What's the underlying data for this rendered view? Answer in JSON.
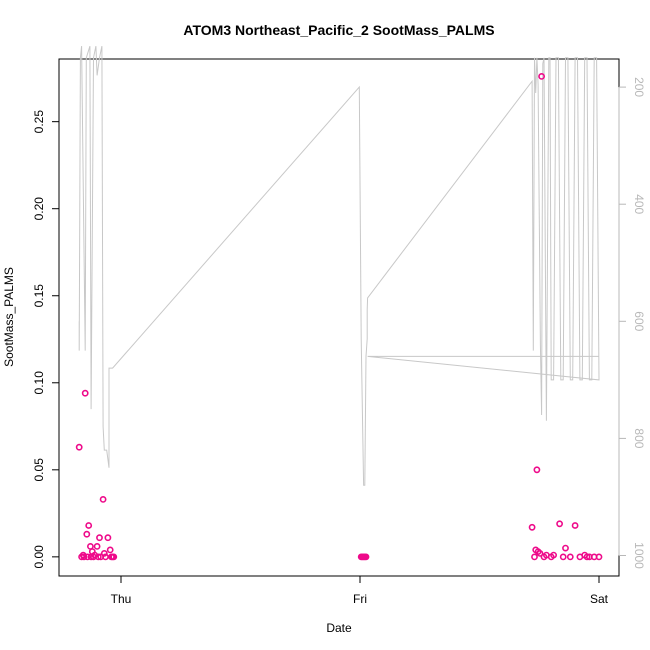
{
  "chart_data": {
    "type": "scatter",
    "title": "ATOM3 Northeast_Pacific_2 SootMass_PALMS",
    "xlabel": "Date",
    "ylabel": "SootMass_PALMS",
    "x_ticks": [
      "Thu",
      "Fri",
      "Sat"
    ],
    "y_ticks": [
      "0.00",
      "0.05",
      "0.10",
      "0.15",
      "0.20",
      "0.25"
    ],
    "y_tick_values": [
      0.0,
      0.05,
      0.1,
      0.15,
      0.2,
      0.25
    ],
    "ylim": [
      -0.011,
      0.286
    ],
    "xlim_days": [
      -0.205,
      2.025
    ],
    "y2_ticks": [
      "200",
      "400",
      "600",
      "800",
      "1000"
    ],
    "y2_tick_values": [
      200,
      400,
      600,
      800,
      1000
    ],
    "y2lim": [
      1035,
      152
    ],
    "grid": false,
    "colors": {
      "points": "#ee0a8a",
      "pressure_line": "#c8c8c8",
      "axis": "#000000",
      "y2_axis": "#b8b8b8"
    },
    "series": [
      {
        "type": "scatter",
        "x": [
          -0.175,
          -0.158,
          -0.15,
          -0.143,
          -0.135,
          -0.128,
          -0.12,
          -0.11,
          -0.1,
          -0.09,
          -0.075,
          -0.07,
          -0.055,
          -0.045,
          -0.035,
          -0.03,
          -0.165,
          -0.155,
          -0.14,
          -0.125,
          -0.115,
          -0.095,
          -0.085,
          -0.065,
          -0.04,
          1.005,
          1.01,
          1.015,
          1.02,
          1.025,
          1.72,
          1.735,
          1.74,
          1.745,
          1.753,
          1.76,
          1.78,
          1.81,
          1.835,
          1.86,
          1.9,
          1.94,
          1.96,
          2.0,
          1.73,
          1.77,
          1.8,
          1.85,
          1.88,
          1.92,
          1.95,
          1.98
        ],
        "y": [
          0.063,
          0.001,
          0.094,
          0.013,
          0.018,
          0.006,
          0.003,
          0.001,
          0.006,
          0.011,
          0.033,
          0.002,
          0.011,
          0.004,
          0.0,
          0.0,
          0.0,
          0.0,
          0.0,
          0.0,
          0.0,
          0.0,
          0.0,
          0.0,
          0.0,
          0.0,
          0.0,
          0.0,
          0.0,
          0.0,
          0.017,
          0.004,
          0.05,
          0.003,
          0.002,
          0.276,
          0.001,
          0.001,
          0.019,
          0.005,
          0.018,
          0.001,
          0.0,
          0.0,
          0.0,
          0.0,
          0.0,
          0.0,
          0.0,
          0.0,
          0.0,
          0.0
        ]
      },
      {
        "type": "line",
        "axis": "y2",
        "x": [
          -0.175,
          -0.175,
          -0.17,
          -0.165,
          -0.15,
          -0.145,
          -0.13,
          -0.125,
          -0.115,
          -0.105,
          -0.1,
          -0.09,
          -0.08,
          -0.075,
          -0.07,
          -0.06,
          -0.05,
          -0.05,
          -0.035,
          0.997,
          1.005,
          1.015,
          1.02,
          1.025,
          1.03,
          1.03,
          1.032,
          1.72,
          1.725,
          1.73,
          1.735,
          1.74,
          1.745,
          1.755,
          1.76,
          1.765,
          1.77,
          1.78,
          1.79,
          1.795,
          1.8,
          1.81,
          1.82,
          1.83,
          1.84,
          1.85,
          1.86,
          1.87,
          1.88,
          1.89,
          1.9,
          1.91,
          1.92,
          1.93,
          1.94,
          1.95,
          1.96,
          1.97,
          1.98,
          1.99,
          2.0,
          1.032,
          2.0
        ],
        "y": [
          600,
          650,
          150,
          130,
          650,
          150,
          130,
          750,
          150,
          130,
          180,
          150,
          130,
          780,
          820,
          820,
          850,
          680,
          680,
          200,
          630,
          880,
          880,
          660,
          630,
          580,
          560,
          190,
          650,
          150,
          210,
          150,
          195,
          640,
          760,
          160,
          150,
          770,
          150,
          150,
          700,
          700,
          150,
          150,
          700,
          700,
          150,
          150,
          700,
          700,
          150,
          150,
          700,
          700,
          150,
          150,
          700,
          700,
          150,
          150,
          700,
          660,
          660
        ]
      }
    ]
  }
}
